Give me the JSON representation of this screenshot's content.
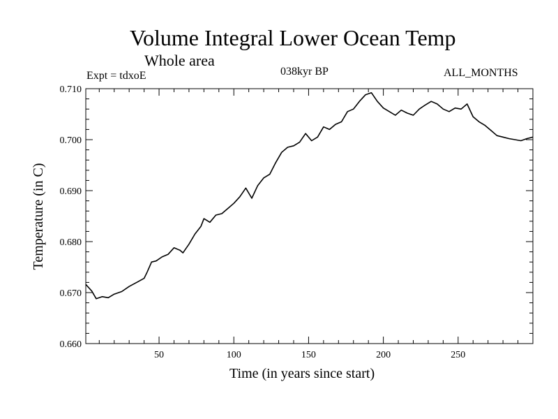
{
  "chart_data": {
    "type": "line",
    "title": "Volume Integral Lower Ocean Temp",
    "subtitle": "Whole area",
    "annotations": {
      "experiment": "Expt = tdxoE",
      "period": "038kyr BP",
      "months": "ALL_MONTHS"
    },
    "xlabel": "Time (in years since start)",
    "ylabel": "Temperature (in C)",
    "xlim": [
      1,
      300
    ],
    "ylim": [
      0.66,
      0.71
    ],
    "x_ticks": [
      50,
      100,
      150,
      200,
      250
    ],
    "y_ticks": [
      "0.660",
      "0.670",
      "0.680",
      "0.690",
      "0.700",
      "0.710"
    ],
    "grid": false,
    "series": [
      {
        "x": [
          1,
          5,
          8,
          12,
          16,
          20,
          25,
          30,
          35,
          40,
          42,
          45,
          48,
          52,
          56,
          60,
          64,
          66,
          70,
          74,
          78,
          80,
          84,
          88,
          92,
          96,
          100,
          104,
          108,
          112,
          116,
          120,
          124,
          128,
          132,
          136,
          140,
          144,
          148,
          152,
          156,
          160,
          164,
          168,
          172,
          176,
          180,
          184,
          188,
          192,
          196,
          200,
          204,
          208,
          212,
          216,
          220,
          224,
          228,
          232,
          236,
          240,
          244,
          248,
          252,
          256,
          260,
          264,
          268,
          272,
          276,
          280,
          284,
          288,
          292,
          296,
          300
        ],
        "values": [
          0.6716,
          0.6703,
          0.6688,
          0.6692,
          0.669,
          0.6697,
          0.6702,
          0.6712,
          0.672,
          0.6728,
          0.674,
          0.676,
          0.6762,
          0.677,
          0.6775,
          0.6788,
          0.6783,
          0.6778,
          0.6795,
          0.6815,
          0.683,
          0.6845,
          0.6838,
          0.6852,
          0.6855,
          0.6865,
          0.6875,
          0.6888,
          0.6905,
          0.6885,
          0.691,
          0.6925,
          0.6932,
          0.6955,
          0.6975,
          0.6985,
          0.6988,
          0.6995,
          0.7012,
          0.6998,
          0.7005,
          0.7025,
          0.702,
          0.703,
          0.7035,
          0.7055,
          0.706,
          0.7075,
          0.7088,
          0.7092,
          0.7075,
          0.7062,
          0.7055,
          0.7048,
          0.7058,
          0.7052,
          0.7048,
          0.706,
          0.7068,
          0.7075,
          0.707,
          0.706,
          0.7055,
          0.7062,
          0.706,
          0.707,
          0.7045,
          0.7035,
          0.7028,
          0.7018,
          0.7008,
          0.7005,
          0.7002,
          0.7,
          0.6998,
          0.7002,
          0.7005
        ]
      }
    ]
  }
}
